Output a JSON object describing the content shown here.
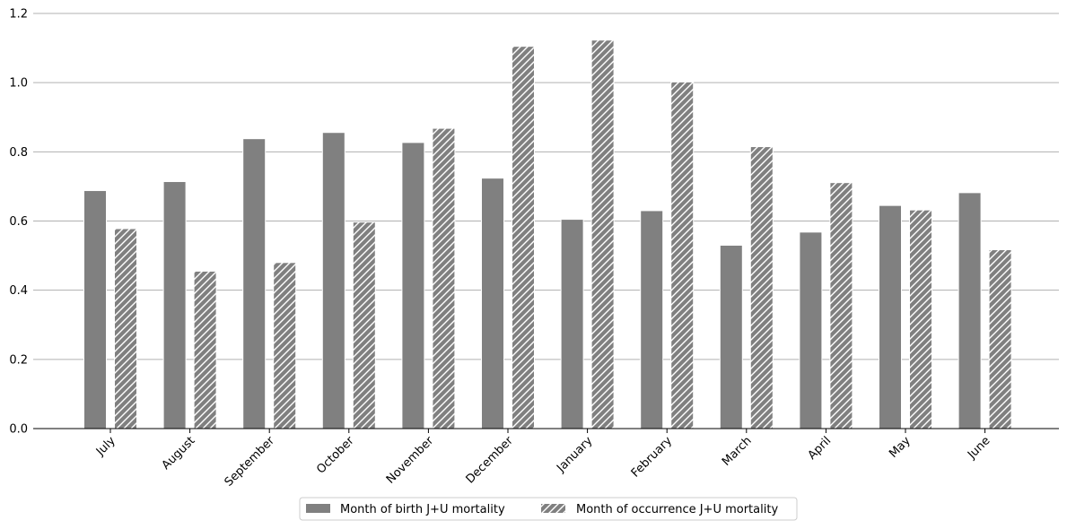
{
  "chart_data": {
    "type": "bar",
    "title": "",
    "xlabel": "",
    "ylabel": "",
    "ylim": [
      0,
      1.2
    ],
    "yticks": [
      "0.0",
      "0.2",
      "0.4",
      "0.6",
      "0.8",
      "1.0",
      "1.2"
    ],
    "grid": "horizontal",
    "legend_position": "bottom-center",
    "categories": [
      "July",
      "August",
      "September",
      "October",
      "November",
      "December",
      "January",
      "February",
      "March",
      "April",
      "May",
      "June"
    ],
    "series": [
      {
        "name": "Month of birth J+U mortality",
        "pattern": "solid",
        "color": "#808080",
        "values": [
          0.688,
          0.714,
          0.838,
          0.856,
          0.827,
          0.724,
          0.605,
          0.63,
          0.53,
          0.568,
          0.645,
          0.682
        ]
      },
      {
        "name": "Month of occurrence J+U mortality",
        "pattern": "hatched",
        "color": "#808080",
        "values": [
          0.578,
          0.455,
          0.48,
          0.597,
          0.868,
          1.105,
          1.123,
          1.002,
          0.815,
          0.711,
          0.632,
          0.517
        ]
      }
    ]
  }
}
